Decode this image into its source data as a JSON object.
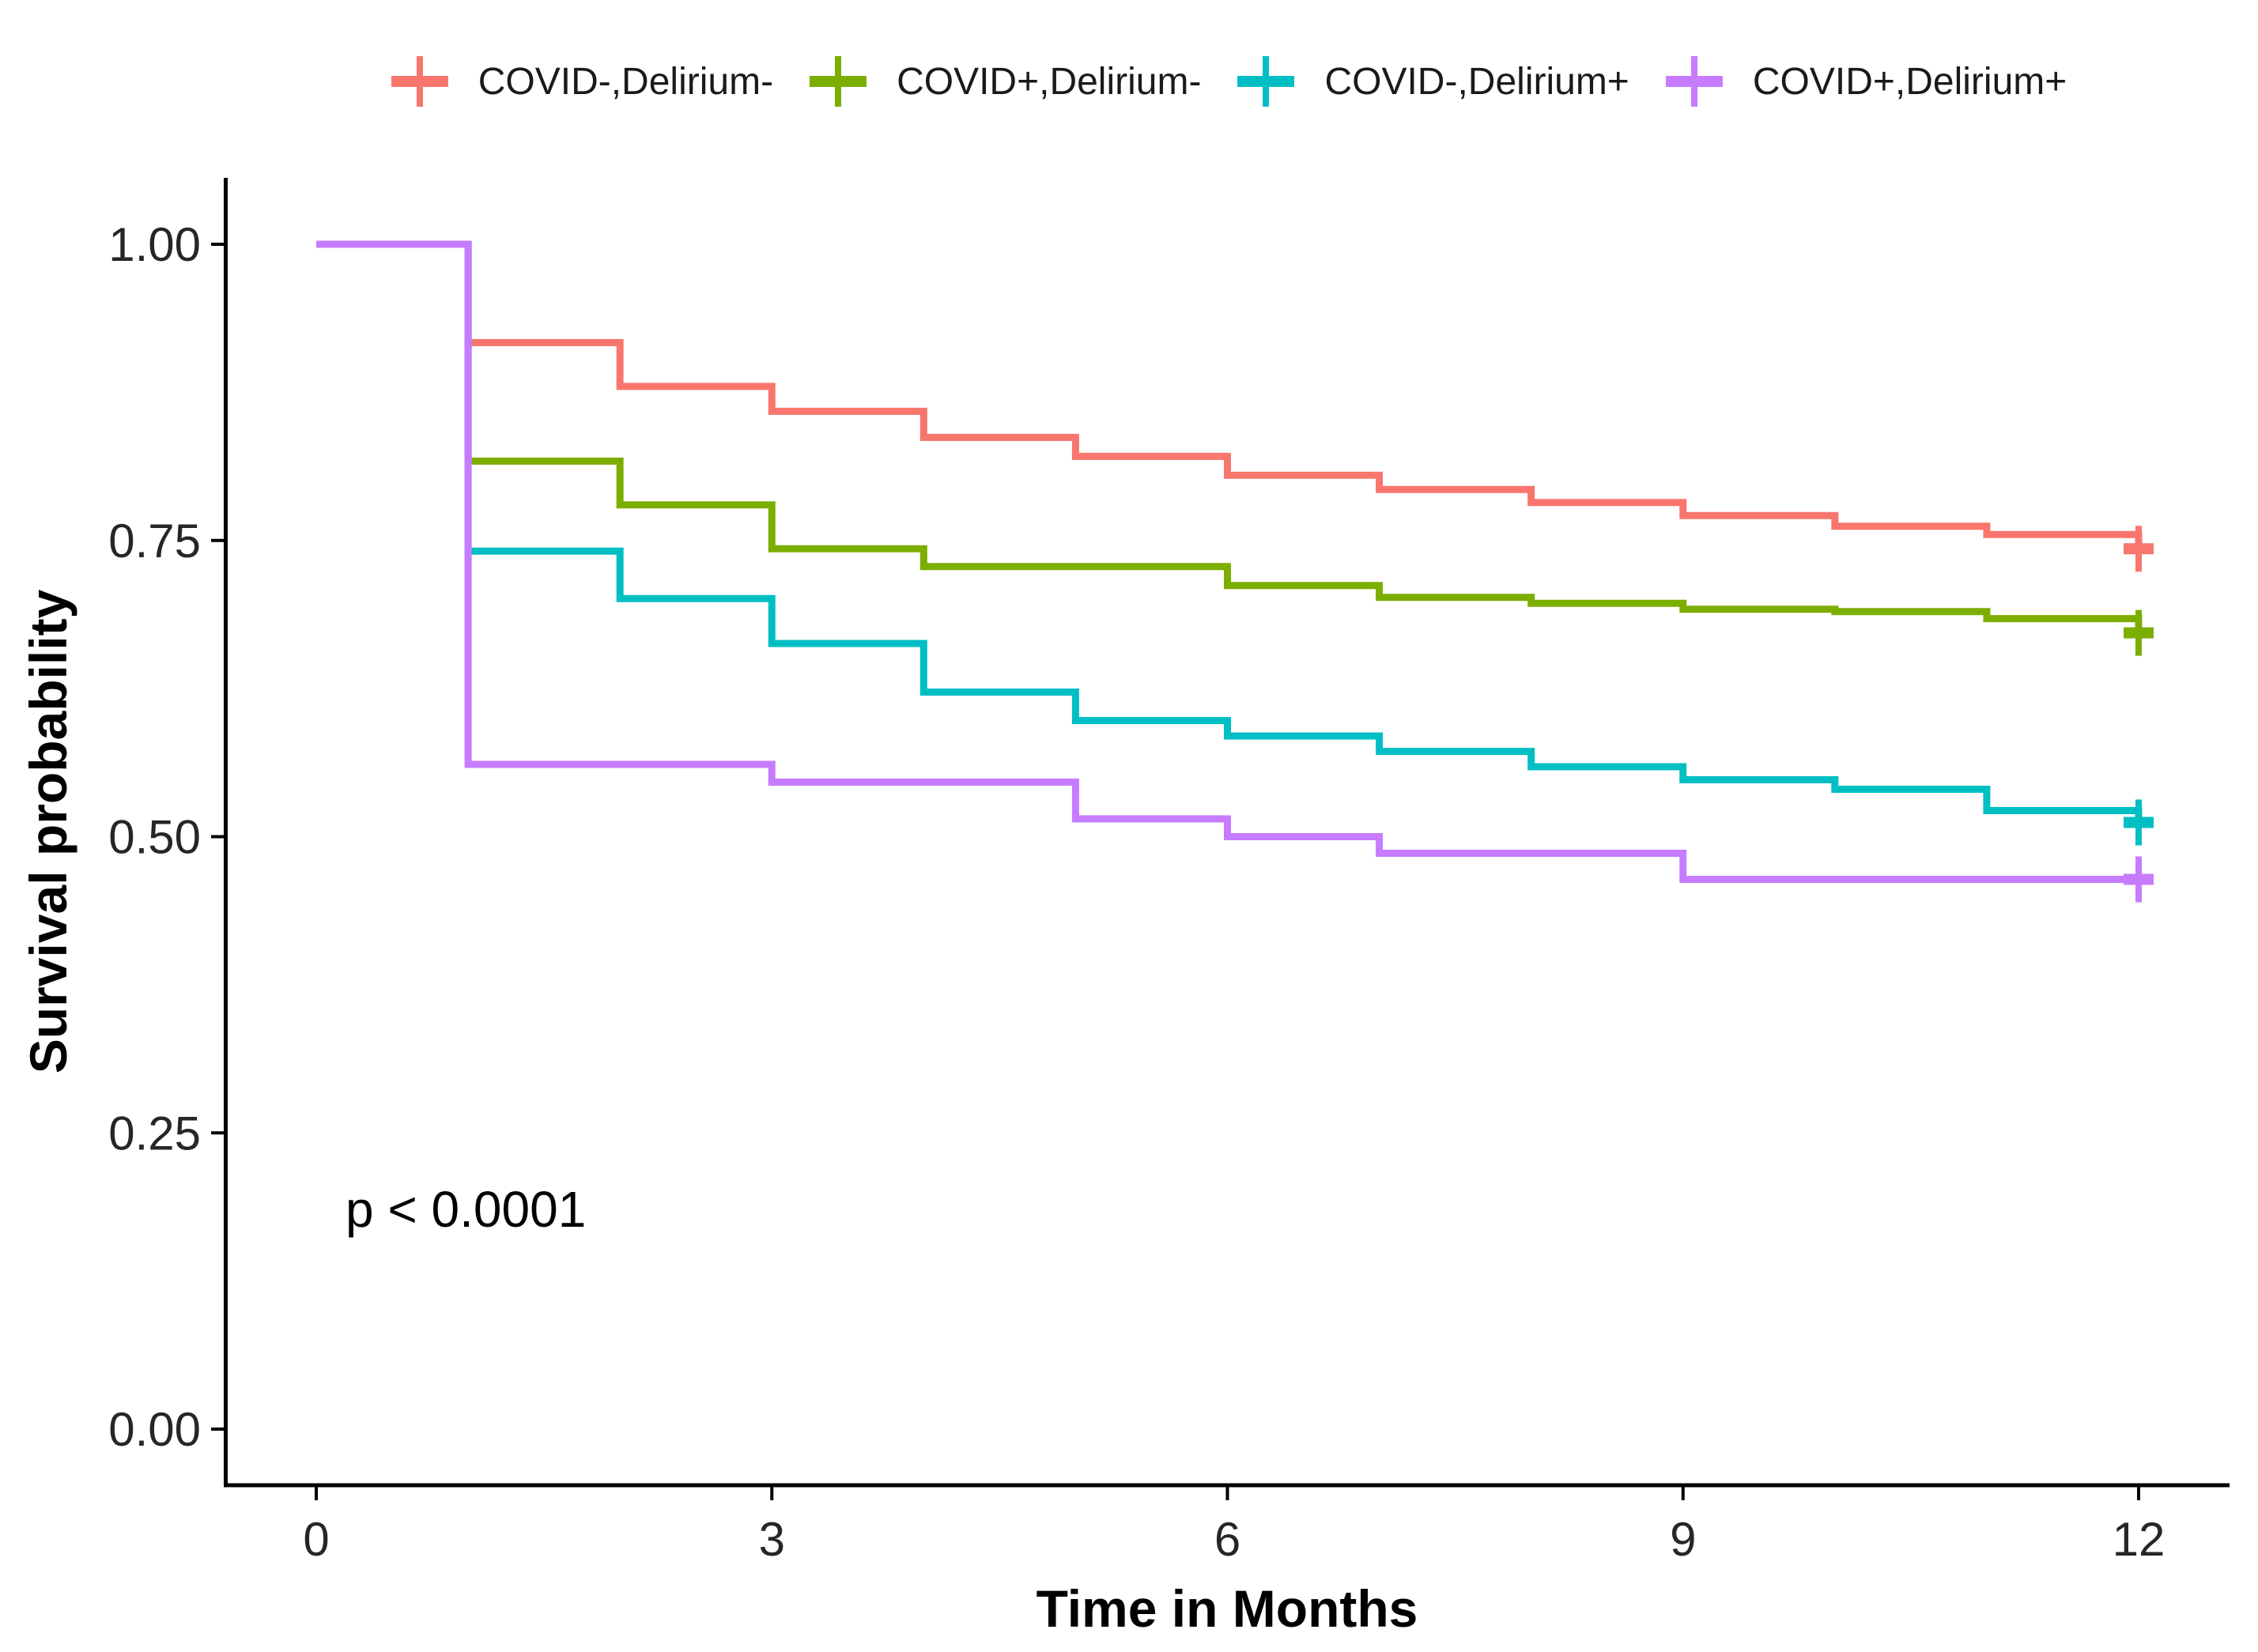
{
  "chart_data": {
    "type": "line",
    "subtype": "kaplan_meier_step",
    "title": "",
    "x_label": "Time in Months",
    "y_label": "Survival probability",
    "x_range": [
      0,
      12
    ],
    "y_range": [
      0.0,
      1.0
    ],
    "x_tick_values": [
      0,
      3,
      6,
      9,
      12
    ],
    "x_tick_labels": [
      "0",
      "3",
      "6",
      "9",
      "12"
    ],
    "y_tick_values": [
      1.0,
      0.75,
      0.5,
      0.25,
      0.0
    ],
    "y_tick_labels": [
      "1.00",
      "0.75",
      "0.50",
      "0.25",
      "0.00"
    ],
    "grid": false,
    "legend_position": "top",
    "p_value": "p < 0.0001",
    "months": [
      0,
      1,
      2,
      3,
      4,
      5,
      6,
      7,
      8,
      9,
      10,
      11,
      12
    ],
    "series": [
      {
        "name": "COVID-,Delirium-",
        "color": "#F8766D",
        "censored_at_end": true,
        "values": [
          1.0,
          0.917,
          0.88,
          0.859,
          0.837,
          0.821,
          0.805,
          0.793,
          0.782,
          0.771,
          0.762,
          0.755,
          0.743
        ]
      },
      {
        "name": "COVID+,Delirium-",
        "color": "#7CAE00",
        "censored_at_end": true,
        "values": [
          1.0,
          0.817,
          0.78,
          0.743,
          0.728,
          0.728,
          0.712,
          0.702,
          0.697,
          0.692,
          0.69,
          0.684,
          0.672
        ]
      },
      {
        "name": "COVID-,Delirium+",
        "color": "#00BFC4",
        "censored_at_end": true,
        "values": [
          1.0,
          0.741,
          0.701,
          0.663,
          0.622,
          0.598,
          0.585,
          0.572,
          0.559,
          0.548,
          0.54,
          0.522,
          0.512
        ]
      },
      {
        "name": "COVID+,Delirium+",
        "color": "#C77CFF",
        "censored_at_end": true,
        "values": [
          1.0,
          0.561,
          0.561,
          0.546,
          0.546,
          0.515,
          0.5,
          0.486,
          0.486,
          0.464,
          0.464,
          0.464,
          0.464
        ]
      }
    ]
  }
}
